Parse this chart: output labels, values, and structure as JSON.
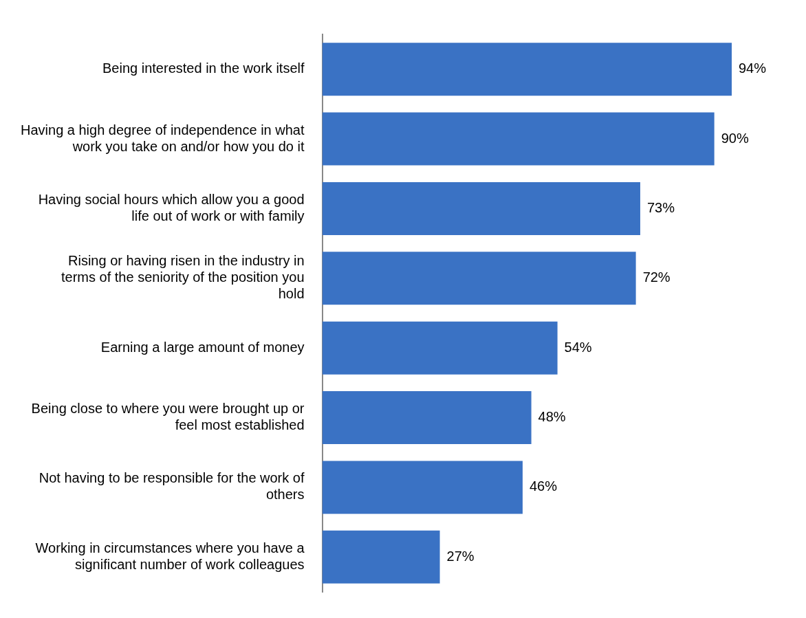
{
  "chart_data": {
    "type": "bar",
    "orientation": "horizontal",
    "categories": [
      "Being interested in the work itself",
      "Having a high degree of independence in what work you take on and/or how you do it",
      "Having social hours which allow you a good life out of work or with family",
      "Rising or having risen in the industry in terms of the seniority of the position you hold",
      "Earning a large amount of money",
      "Being close to where you were brought up or feel most established",
      "Not having to be responsible for the work of others",
      "Working in circumstances where you have a significant number of work colleagues"
    ],
    "values": [
      94,
      90,
      73,
      72,
      54,
      48,
      46,
      27
    ],
    "value_labels": [
      "94%",
      "90%",
      "73%",
      "72%",
      "54%",
      "48%",
      "46%",
      "27%"
    ],
    "color": "#3a72c4",
    "grid": false,
    "legend": false
  }
}
